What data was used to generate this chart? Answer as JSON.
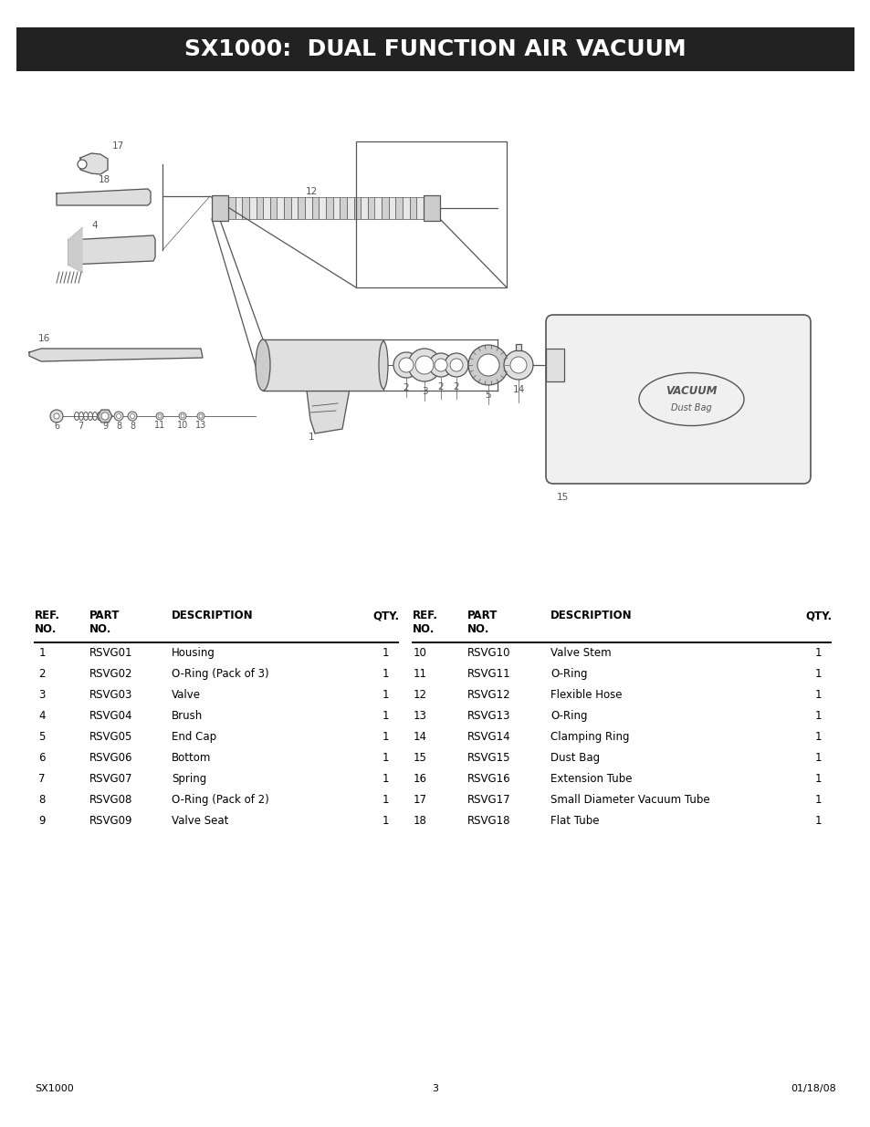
{
  "title": "SX1000:  DUAL FUNCTION AIR VACUUM",
  "title_bg": "#222222",
  "title_color": "#ffffff",
  "footer_left": "SX1000",
  "footer_center": "3",
  "footer_right": "01/18/08",
  "left_table": [
    [
      "1",
      "RSVG01",
      "Housing",
      "1"
    ],
    [
      "2",
      "RSVG02",
      "O-Ring (Pack of 3)",
      "1"
    ],
    [
      "3",
      "RSVG03",
      "Valve",
      "1"
    ],
    [
      "4",
      "RSVG04",
      "Brush",
      "1"
    ],
    [
      "5",
      "RSVG05",
      "End Cap",
      "1"
    ],
    [
      "6",
      "RSVG06",
      "Bottom",
      "1"
    ],
    [
      "7",
      "RSVG07",
      "Spring",
      "1"
    ],
    [
      "8",
      "RSVG08",
      "O-Ring (Pack of 2)",
      "1"
    ],
    [
      "9",
      "RSVG09",
      "Valve Seat",
      "1"
    ]
  ],
  "right_table": [
    [
      "10",
      "RSVG10",
      "Valve Stem",
      "1"
    ],
    [
      "11",
      "RSVG11",
      "O-Ring",
      "1"
    ],
    [
      "12",
      "RSVG12",
      "Flexible Hose",
      "1"
    ],
    [
      "13",
      "RSVG13",
      "O-Ring",
      "1"
    ],
    [
      "14",
      "RSVG14",
      "Clamping Ring",
      "1"
    ],
    [
      "15",
      "RSVG15",
      "Dust Bag",
      "1"
    ],
    [
      "16",
      "RSVG16",
      "Extension Tube",
      "1"
    ],
    [
      "17",
      "RSVG17",
      "Small Diameter Vacuum Tube",
      "1"
    ],
    [
      "18",
      "RSVG18",
      "Flat Tube",
      "1"
    ]
  ],
  "bg_color": "#ffffff",
  "text_color": "#000000"
}
